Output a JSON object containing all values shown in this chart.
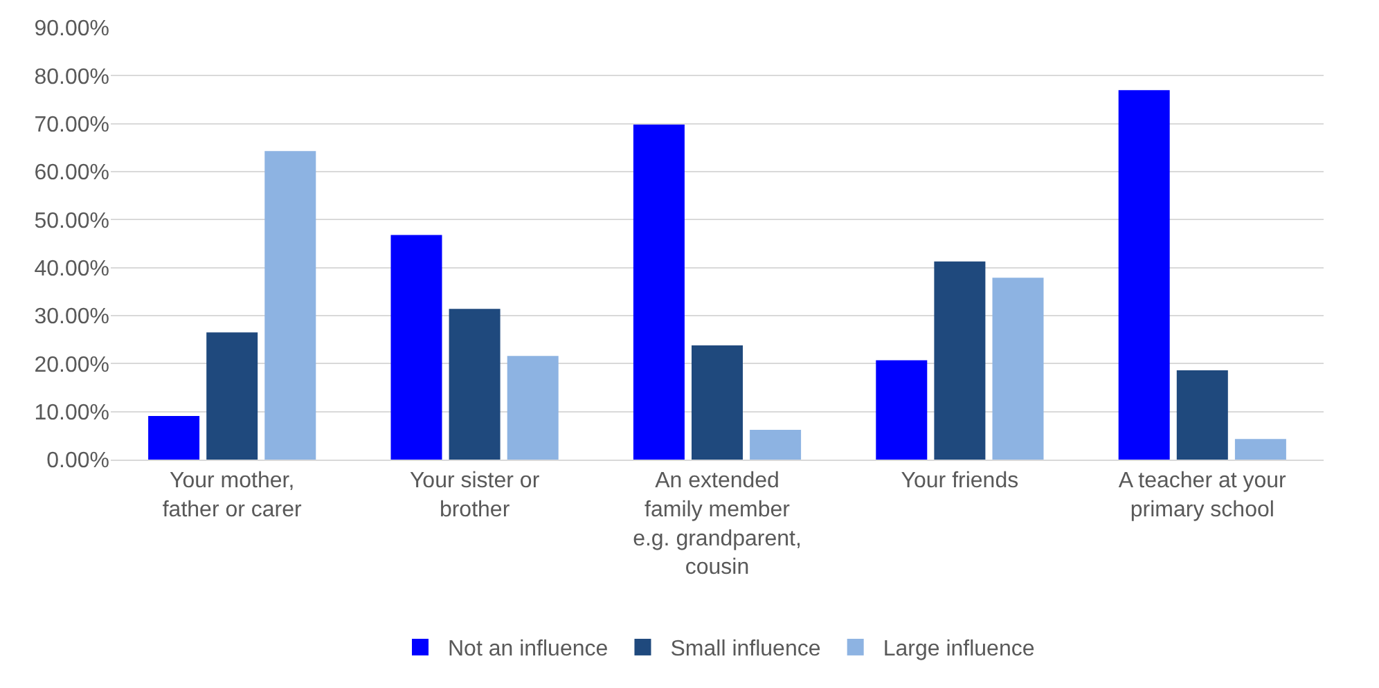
{
  "chart_data": {
    "type": "bar",
    "categories": [
      "Your mother, father or carer",
      "Your sister or brother",
      "An extended family member e.g. grandparent, cousin",
      "Your friends",
      "A teacher at your primary school"
    ],
    "series": [
      {
        "name": "Not an influence",
        "color": "#0000ff",
        "values": [
          9.1,
          46.8,
          69.8,
          20.7,
          77.0
        ]
      },
      {
        "name": "Small influence",
        "color": "#1f497d",
        "values": [
          26.5,
          31.4,
          23.8,
          41.3,
          18.6
        ]
      },
      {
        "name": "Large influence",
        "color": "#8db3e2",
        "values": [
          64.3,
          21.6,
          6.2,
          37.9,
          4.3
        ]
      }
    ],
    "ylim": [
      0,
      90
    ],
    "yticks": [
      {
        "value": 0,
        "label": "0.00%"
      },
      {
        "value": 10,
        "label": "10.00%"
      },
      {
        "value": 20,
        "label": "20.00%"
      },
      {
        "value": 30,
        "label": "30.00%"
      },
      {
        "value": 40,
        "label": "40.00%"
      },
      {
        "value": 50,
        "label": "50.00%"
      },
      {
        "value": 60,
        "label": "60.00%"
      },
      {
        "value": 70,
        "label": "70.00%"
      },
      {
        "value": 80,
        "label": "80.00%"
      },
      {
        "value": 90,
        "label": "90.00%"
      }
    ],
    "grid": "y",
    "legend": "bottom"
  }
}
